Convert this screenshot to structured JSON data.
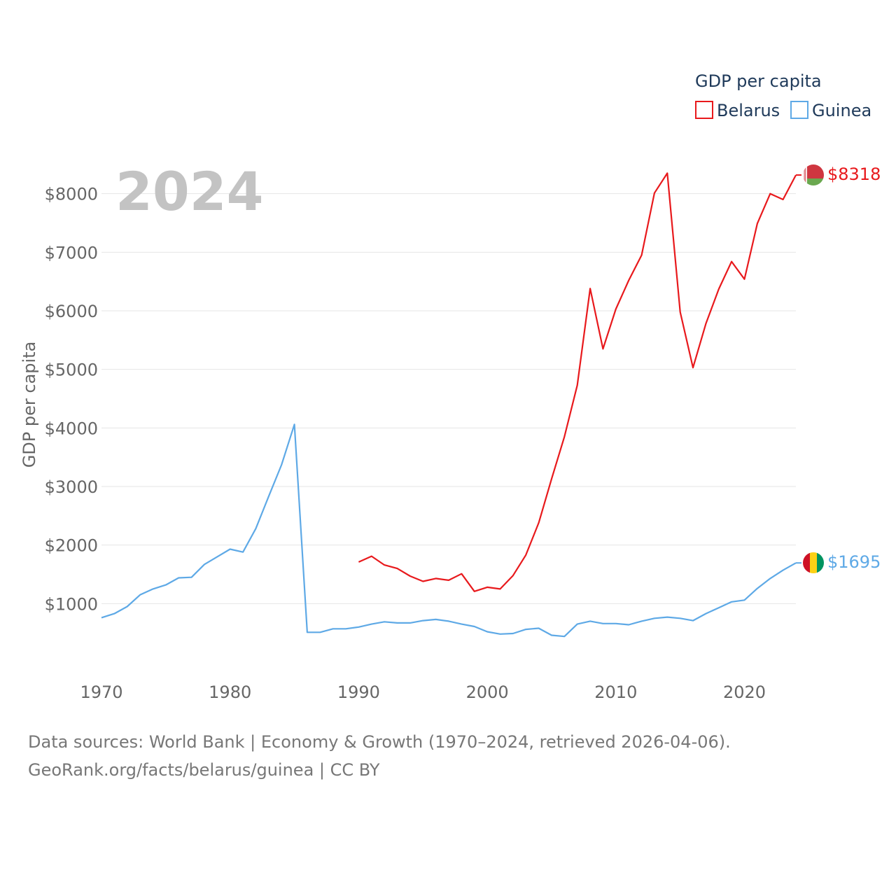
{
  "chart_data": {
    "type": "line",
    "title": "GDP per capita",
    "year_label": "2024",
    "ylabel": "GDP per capita",
    "xlabel": "",
    "xlim": [
      1970,
      2024
    ],
    "ylim": [
      0,
      9000
    ],
    "x_ticks": [
      1970,
      1980,
      1990,
      2000,
      2010,
      2020
    ],
    "y_ticks": [
      {
        "value": 1000,
        "label": "$1000"
      },
      {
        "value": 2000,
        "label": "$2000"
      },
      {
        "value": 3000,
        "label": "$3000"
      },
      {
        "value": 4000,
        "label": "$4000"
      },
      {
        "value": 5000,
        "label": "$5000"
      },
      {
        "value": 6000,
        "label": "$6000"
      },
      {
        "value": 7000,
        "label": "$7000"
      },
      {
        "value": 8000,
        "label": "$8000"
      }
    ],
    "legend_title": "GDP per capita",
    "series": [
      {
        "name": "Belarus",
        "color": "#e8191c",
        "end_label": "$8318",
        "flag": "belarus-flag-icon",
        "x": [
          1990,
          1991,
          1992,
          1993,
          1994,
          1995,
          1996,
          1997,
          1998,
          1999,
          2000,
          2001,
          2002,
          2003,
          2004,
          2005,
          2006,
          2007,
          2008,
          2009,
          2010,
          2011,
          2012,
          2013,
          2014,
          2015,
          2016,
          2017,
          2018,
          2019,
          2020,
          2021,
          2022,
          2023,
          2024
        ],
        "values": [
          1710,
          1810,
          1660,
          1600,
          1470,
          1380,
          1430,
          1400,
          1510,
          1210,
          1280,
          1250,
          1480,
          1830,
          2380,
          3130,
          3850,
          4730,
          6380,
          5350,
          6030,
          6520,
          6950,
          8010,
          8350,
          5980,
          5030,
          5780,
          6370,
          6840,
          6540,
          7490,
          8000,
          7900,
          8318
        ]
      },
      {
        "name": "Guinea",
        "color": "#5ea9e6",
        "end_label": "$1695",
        "flag": "guinea-flag-icon",
        "x": [
          1970,
          1971,
          1972,
          1973,
          1974,
          1975,
          1976,
          1977,
          1978,
          1979,
          1980,
          1981,
          1982,
          1983,
          1984,
          1985,
          1986,
          1987,
          1988,
          1989,
          1990,
          1991,
          1992,
          1993,
          1994,
          1995,
          1996,
          1997,
          1998,
          1999,
          2000,
          2001,
          2002,
          2003,
          2004,
          2005,
          2006,
          2007,
          2008,
          2009,
          2010,
          2011,
          2012,
          2013,
          2014,
          2015,
          2016,
          2017,
          2018,
          2019,
          2020,
          2021,
          2022,
          2023,
          2024
        ],
        "values": [
          760,
          830,
          950,
          1150,
          1250,
          1320,
          1440,
          1450,
          1670,
          1800,
          1930,
          1880,
          2280,
          2830,
          3370,
          4060,
          510,
          510,
          570,
          570,
          600,
          650,
          690,
          670,
          670,
          710,
          730,
          700,
          650,
          610,
          520,
          480,
          490,
          560,
          580,
          460,
          440,
          650,
          700,
          660,
          660,
          640,
          700,
          750,
          770,
          750,
          710,
          830,
          930,
          1030,
          1060,
          1260,
          1430,
          1570,
          1695
        ]
      }
    ]
  },
  "footer": {
    "line1": "Data sources: World Bank | Economy & Growth (1970–2024, retrieved 2026-04-06).",
    "line2": "GeoRank.org/facts/belarus/guinea | CC BY"
  }
}
